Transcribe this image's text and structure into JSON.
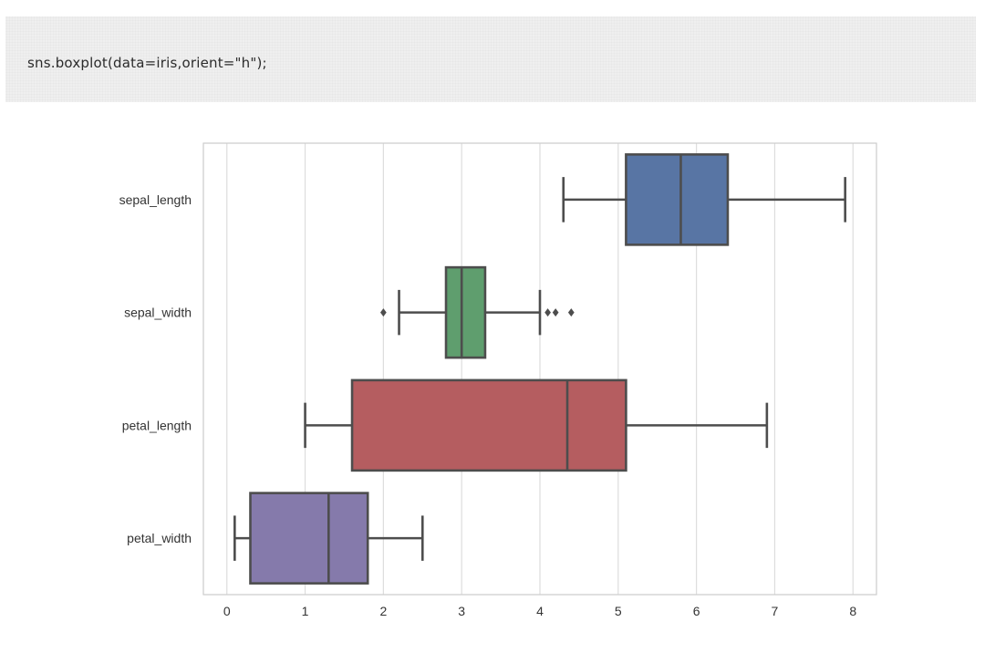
{
  "code_cell": {
    "source": "sns.boxplot(data=iris,orient=\"h\");"
  },
  "chart_data": {
    "type": "boxplot",
    "orientation": "horizontal",
    "xlim": [
      -0.3,
      8.3
    ],
    "x_ticks": [
      0,
      1,
      2,
      3,
      4,
      5,
      6,
      7,
      8
    ],
    "grid": "vertical",
    "categories": [
      "sepal_length",
      "sepal_width",
      "petal_length",
      "petal_width"
    ],
    "boxes": [
      {
        "category": "sepal_length",
        "whisker_low": 4.3,
        "q1": 5.1,
        "median": 5.8,
        "q3": 6.4,
        "whisker_high": 7.9,
        "outliers": [],
        "color": "#5875a4"
      },
      {
        "category": "sepal_width",
        "whisker_low": 2.2,
        "q1": 2.8,
        "median": 3.0,
        "q3": 3.3,
        "whisker_high": 4.0,
        "outliers": [
          2.0,
          4.1,
          4.2,
          4.4
        ],
        "color": "#5f9e6e"
      },
      {
        "category": "petal_length",
        "whisker_low": 1.0,
        "q1": 1.6,
        "median": 4.35,
        "q3": 5.1,
        "whisker_high": 6.9,
        "outliers": [],
        "color": "#b55d60"
      },
      {
        "category": "petal_width",
        "whisker_low": 0.1,
        "q1": 0.3,
        "median": 1.3,
        "q3": 1.8,
        "whisker_high": 2.5,
        "outliers": [],
        "color": "#857aab"
      }
    ],
    "line_color": "#4d4d4d",
    "grid_color": "#dddddd",
    "frame_color": "#cccccc"
  }
}
